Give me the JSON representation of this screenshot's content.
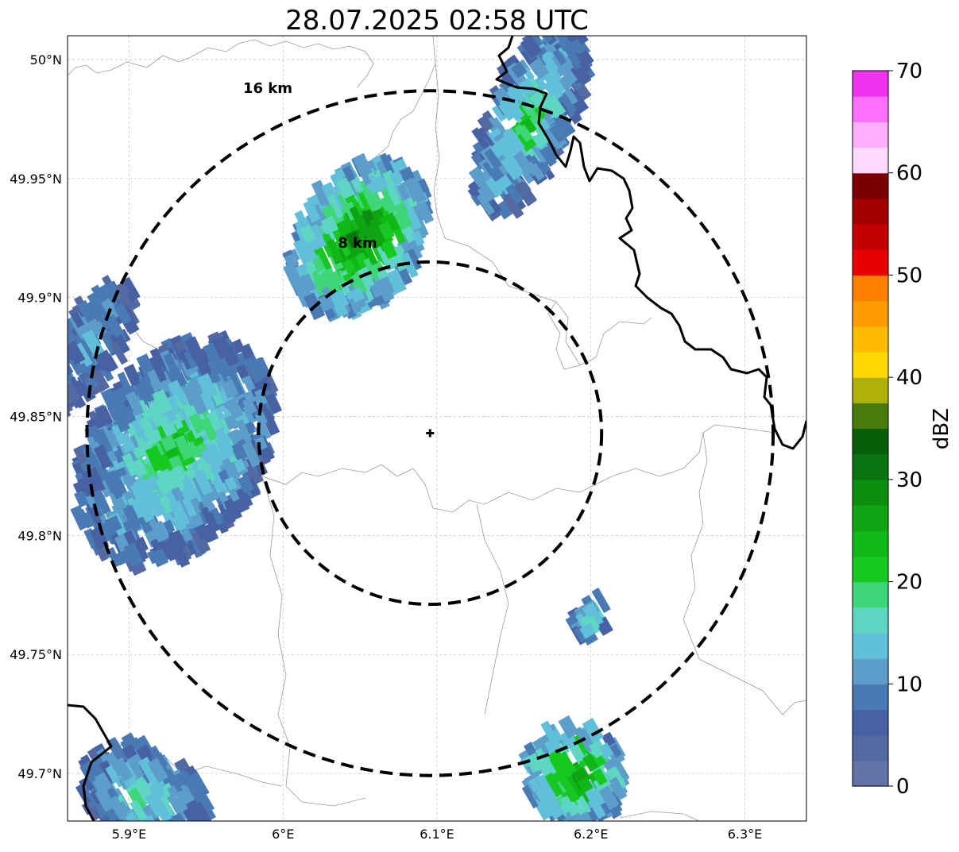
{
  "title": "28.07.2025 02:58 UTC",
  "map": {
    "lon_range": [
      5.86,
      6.34
    ],
    "lat_range": [
      49.68,
      50.01
    ],
    "lon_ticks": [
      {
        "value": 5.9,
        "label": "5.9°E"
      },
      {
        "value": 6.0,
        "label": "6°E"
      },
      {
        "value": 6.1,
        "label": "6.1°E"
      },
      {
        "value": 6.2,
        "label": "6.2°E"
      },
      {
        "value": 6.3,
        "label": "6.3°E"
      }
    ],
    "lat_ticks": [
      {
        "value": 50.0,
        "label": "50°N"
      },
      {
        "value": 49.95,
        "label": "49.95°N"
      },
      {
        "value": 49.9,
        "label": "49.9°N"
      },
      {
        "value": 49.85,
        "label": "49.85°N"
      },
      {
        "value": 49.8,
        "label": "49.8°N"
      },
      {
        "value": 49.75,
        "label": "49.75°N"
      },
      {
        "value": 49.7,
        "label": "49.7°N"
      }
    ],
    "grid": true,
    "radar_site": {
      "lon": 6.0955,
      "lat": 49.843
    },
    "range_rings": [
      {
        "radius_km": 8,
        "label": "8 km"
      },
      {
        "radius_km": 16,
        "label": "16 km"
      }
    ]
  },
  "echo_cells": [
    {
      "name": "cell-west",
      "lon": 5.93,
      "lat": 49.835,
      "rx": 0.055,
      "ry": 0.052,
      "rotation": 35,
      "core_dbz": 22,
      "edge_dbz": 6
    },
    {
      "name": "cell-west-north",
      "lon": 5.875,
      "lat": 49.88,
      "rx": 0.02,
      "ry": 0.03,
      "rotation": 30,
      "core_dbz": 12,
      "edge_dbz": 5
    },
    {
      "name": "cell-north-center",
      "lon": 6.05,
      "lat": 49.925,
      "rx": 0.038,
      "ry": 0.036,
      "rotation": 35,
      "core_dbz": 30,
      "edge_dbz": 10
    },
    {
      "name": "cell-north-east",
      "lon": 6.16,
      "lat": 49.975,
      "rx": 0.026,
      "ry": 0.044,
      "rotation": 25,
      "core_dbz": 22,
      "edge_dbz": 6
    },
    {
      "name": "cell-east-small",
      "lon": 6.2,
      "lat": 49.765,
      "rx": 0.01,
      "ry": 0.009,
      "rotation": 30,
      "core_dbz": 18,
      "edge_dbz": 8
    },
    {
      "name": "cell-south-east",
      "lon": 6.19,
      "lat": 49.7,
      "rx": 0.032,
      "ry": 0.02,
      "rotation": 30,
      "core_dbz": 28,
      "edge_dbz": 10
    },
    {
      "name": "cell-south-west",
      "lon": 5.91,
      "lat": 49.69,
      "rx": 0.045,
      "ry": 0.02,
      "rotation": 30,
      "core_dbz": 18,
      "edge_dbz": 6
    }
  ],
  "colorbar": {
    "label": "dBZ",
    "min": 0,
    "max": 70,
    "step": 2.5,
    "ticks": [
      "0",
      "10",
      "20",
      "30",
      "40",
      "50",
      "60",
      "70"
    ],
    "colors": [
      "#6273a8",
      "#5469a2",
      "#4661a4",
      "#4a7ab3",
      "#5c9ec9",
      "#62bfda",
      "#5fd6c3",
      "#3fd67a",
      "#16c81f",
      "#10b817",
      "#0fa512",
      "#0c8e10",
      "#0a7410",
      "#075f0a",
      "#4a7a0c",
      "#adb10a",
      "#ffd700",
      "#ffbb00",
      "#ff9d00",
      "#ff7f00",
      "#e60000",
      "#c40000",
      "#a40000",
      "#780000",
      "#ffdcff",
      "#ffaefe",
      "#ff6ffd",
      "#ef32ef"
    ]
  },
  "colors": {
    "border": "#000000",
    "admin_lines": "#9a9a9a",
    "grid": "#bbbbbb"
  }
}
